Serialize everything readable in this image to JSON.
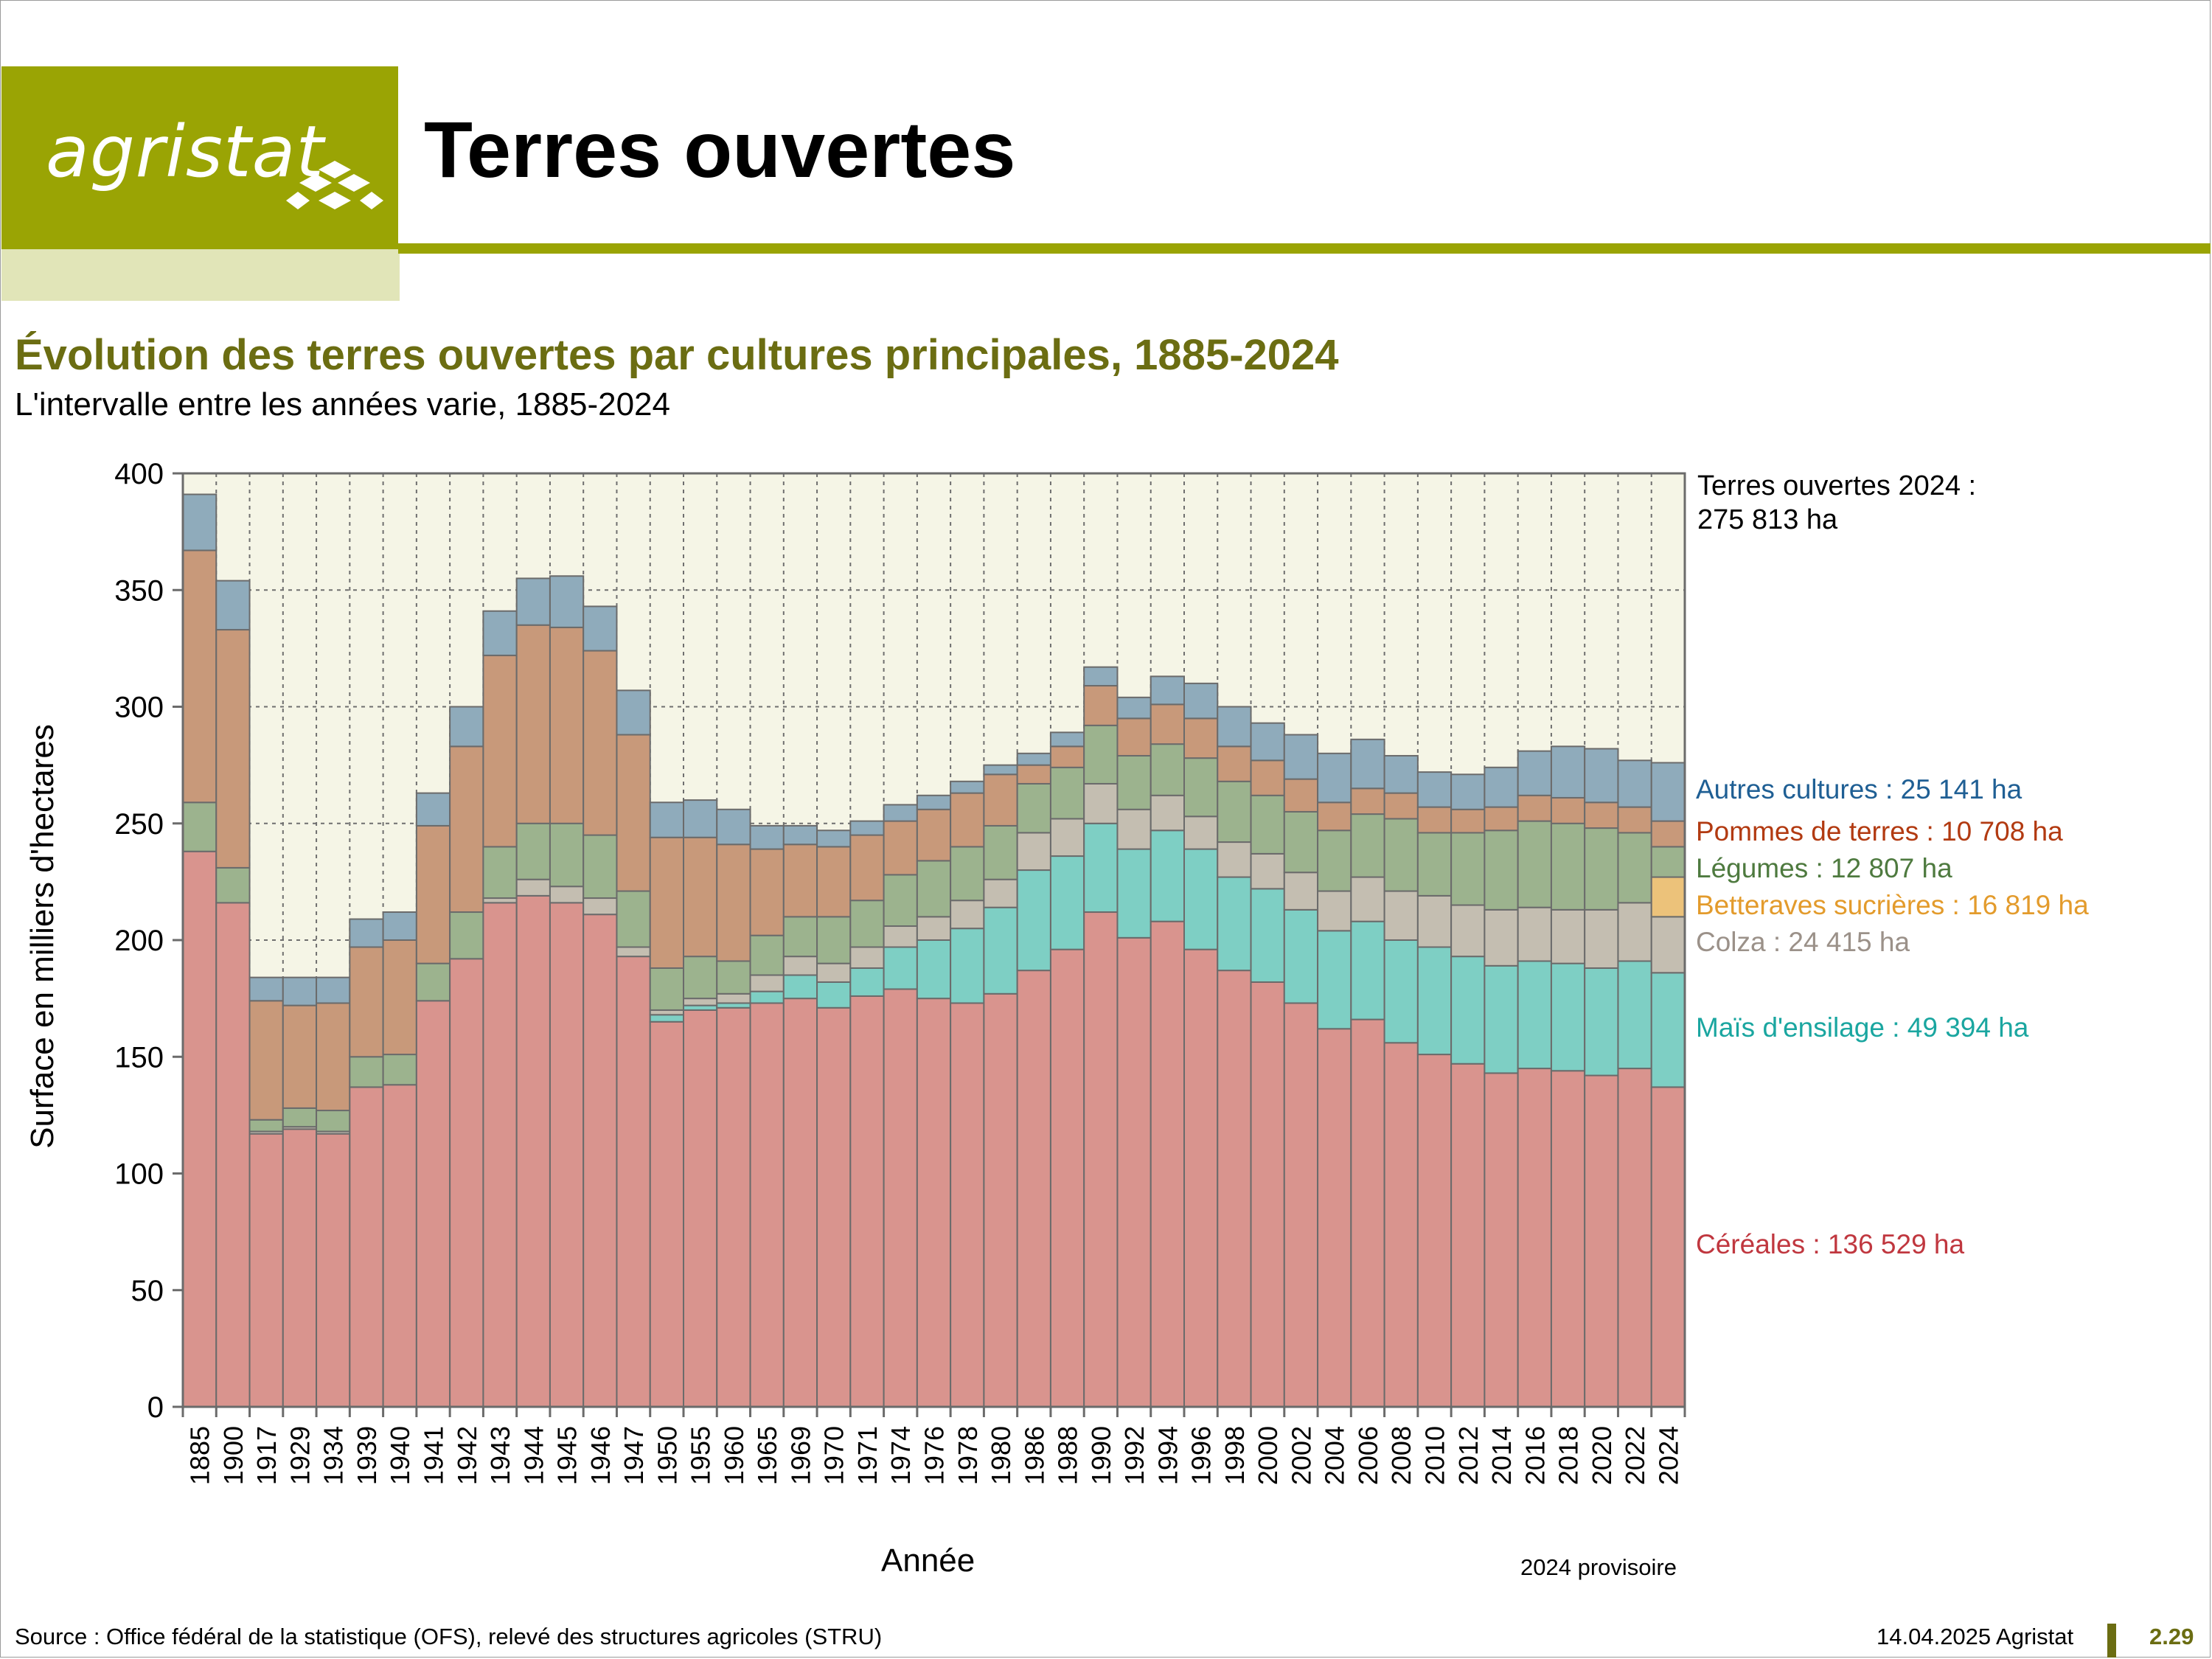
{
  "header": {
    "logo_text": "agristat",
    "page_title": "Terres ouvertes",
    "brand_color": "#9aa404"
  },
  "chart_title": "Évolution des terres ouvertes par cultures principales, 1885-2024",
  "chart_subtitle": "L'intervalle entre les années varie, 1885-2024",
  "notes": {
    "total_line1": "Terres ouvertes 2024 :",
    "total_line2": "275 813 ha",
    "provisional": "2024 provisoire"
  },
  "footer": {
    "source": "Source : Office fédéral de la statistique (OFS), relevé des structures agricoles (STRU)",
    "date": "14.04.2025 Agristat",
    "page": "2.29"
  },
  "chart_data": {
    "type": "bar",
    "stacked": true,
    "xlabel": "Année",
    "ylabel": "Surface en milliers d'hectares",
    "ylim": [
      0,
      400
    ],
    "yticks": [
      0,
      50,
      100,
      150,
      200,
      250,
      300,
      350,
      400
    ],
    "grid": true,
    "categories": [
      "1885",
      "1900",
      "1917",
      "1929",
      "1934",
      "1939",
      "1940",
      "1941",
      "1942",
      "1943",
      "1944",
      "1945",
      "1946",
      "1947",
      "1950",
      "1955",
      "1960",
      "1965",
      "1969",
      "1970",
      "1971",
      "1974",
      "1976",
      "1978",
      "1980",
      "1986",
      "1988",
      "1990",
      "1992",
      "1994",
      "1996",
      "1998",
      "2000",
      "2002",
      "2004",
      "2006",
      "2008",
      "2010",
      "2012",
      "2014",
      "2016",
      "2018",
      "2020",
      "2022",
      "2024"
    ],
    "series": [
      {
        "name": "Céréales",
        "label": "Céréales : 136 529 ha",
        "color": "#d9948e",
        "label_color": "#c0373f",
        "values": [
          238,
          216,
          117,
          119,
          117,
          137,
          138,
          174,
          192,
          216,
          219,
          216,
          211,
          193,
          165,
          170,
          171,
          173,
          175,
          171,
          176,
          179,
          175,
          173,
          177,
          187,
          196,
          212,
          201,
          208,
          196,
          187,
          182,
          173,
          162,
          166,
          156,
          151,
          147,
          143,
          145,
          144,
          142,
          145,
          137
        ]
      },
      {
        "name": "Maïs d'ensilage",
        "label": "Maïs d'ensilage : 49 394 ha",
        "color": "#7ecfc4",
        "label_color": "#1aa6a0",
        "values": [
          0,
          0,
          0,
          0,
          0,
          0,
          0,
          0,
          0,
          0,
          0,
          0,
          0,
          0,
          3,
          2,
          2,
          5,
          10,
          11,
          12,
          18,
          25,
          32,
          37,
          43,
          40,
          38,
          38,
          39,
          43,
          40,
          40,
          40,
          42,
          42,
          44,
          46,
          46,
          46,
          46,
          46,
          46,
          46,
          49
        ]
      },
      {
        "name": "Colza",
        "label": "Colza : 24 415 ha",
        "color": "#c4beb1",
        "label_color": "#9b9189",
        "values": [
          0,
          0,
          1,
          1,
          1,
          0,
          0,
          0,
          0,
          2,
          7,
          7,
          7,
          4,
          2,
          3,
          4,
          7,
          8,
          8,
          9,
          9,
          10,
          12,
          12,
          16,
          16,
          17,
          17,
          15,
          14,
          15,
          15,
          16,
          17,
          19,
          21,
          22,
          22,
          24,
          23,
          23,
          25,
          25,
          24
        ]
      },
      {
        "name": "Betteraves sucrières",
        "label": "Betteraves sucrières : 16 819 ha",
        "color": "#ecc27a",
        "label_color": "#e39b2c",
        "values": [
          0,
          0,
          0,
          0,
          0,
          0,
          0,
          0,
          0,
          0,
          0,
          0,
          0,
          0,
          0,
          0,
          0,
          0,
          0,
          0,
          0,
          0,
          0,
          0,
          0,
          0,
          0,
          0,
          0,
          0,
          0,
          0,
          0,
          0,
          0,
          0,
          0,
          0,
          0,
          0,
          0,
          0,
          0,
          0,
          17
        ]
      },
      {
        "name": "Légumes",
        "label": "Légumes : 12 807 ha",
        "color": "#9cb38e",
        "label_color": "#4e7a3f",
        "values": [
          21,
          15,
          5,
          8,
          9,
          13,
          13,
          16,
          20,
          22,
          24,
          27,
          27,
          24,
          18,
          18,
          14,
          17,
          17,
          20,
          20,
          22,
          24,
          23,
          23,
          21,
          22,
          25,
          23,
          22,
          25,
          26,
          25,
          26,
          26,
          27,
          31,
          27,
          31,
          34,
          37,
          37,
          35,
          30,
          13
        ]
      },
      {
        "name": "Pommes de terres",
        "label": "Pommes de terres : 10 708 ha",
        "color": "#c8997a",
        "label_color": "#b23a11",
        "values": [
          108,
          102,
          51,
          44,
          46,
          47,
          49,
          59,
          71,
          82,
          85,
          84,
          79,
          67,
          56,
          51,
          50,
          37,
          31,
          30,
          28,
          23,
          22,
          23,
          22,
          8,
          9,
          17,
          16,
          17,
          17,
          15,
          15,
          14,
          12,
          11,
          11,
          11,
          10,
          10,
          11,
          11,
          11,
          11,
          11
        ]
      },
      {
        "name": "Autres cultures",
        "label": "Autres cultures : 25 141 ha",
        "color": "#8fabbb",
        "label_color": "#1f5f94",
        "values": [
          24,
          21,
          10,
          12,
          11,
          12,
          12,
          14,
          17,
          19,
          20,
          22,
          19,
          19,
          15,
          16,
          15,
          10,
          8,
          7,
          6,
          7,
          6,
          5,
          4,
          5,
          6,
          8,
          9,
          12,
          15,
          17,
          16,
          19,
          21,
          21,
          16,
          15,
          15,
          17,
          19,
          22,
          23,
          20,
          25
        ]
      }
    ]
  }
}
